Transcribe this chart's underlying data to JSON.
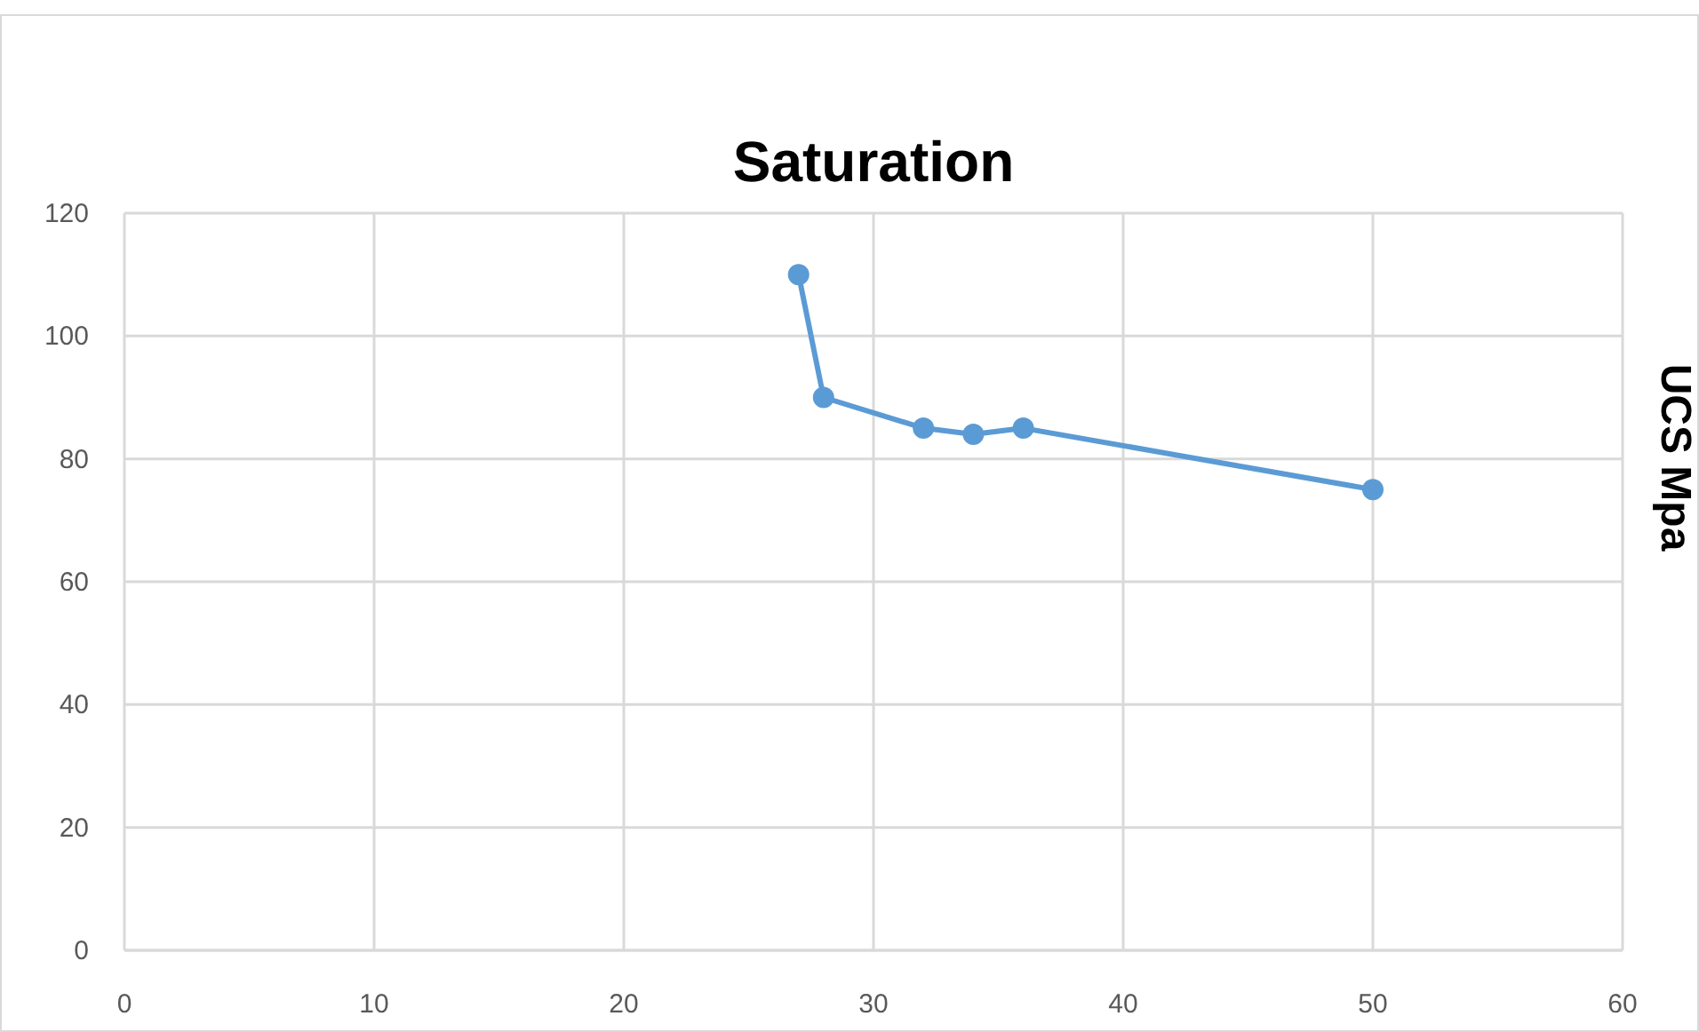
{
  "chart_data": {
    "type": "line",
    "title": "Saturation",
    "ylabel": "UCS Mpa",
    "x": [
      27,
      28,
      32,
      34,
      36,
      50
    ],
    "series": [
      {
        "color": "#5b9bd5",
        "values": [
          110,
          90,
          85,
          84,
          85,
          75
        ]
      }
    ],
    "xlim": [
      0,
      60
    ],
    "xticks": [
      0,
      10,
      20,
      30,
      40,
      50,
      60
    ],
    "ylim": [
      0,
      120
    ],
    "yticks": [
      0,
      20,
      40,
      60,
      80,
      100,
      120
    ],
    "grid": true,
    "marker": "circle",
    "line_style": "solid"
  }
}
